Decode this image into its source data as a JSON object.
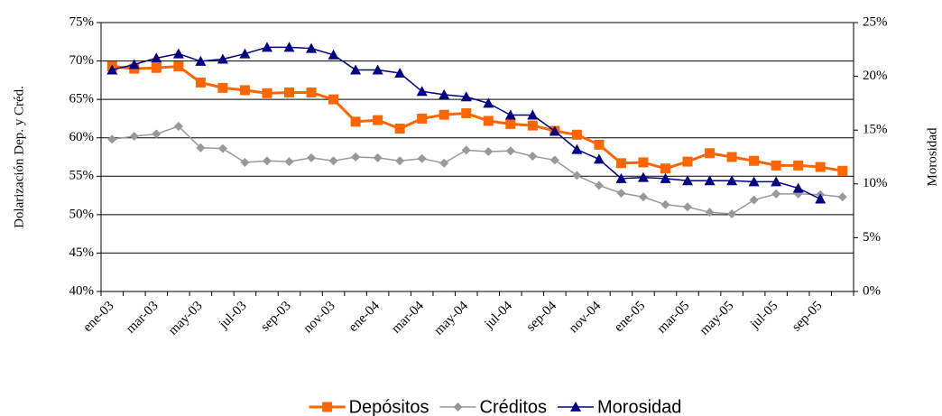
{
  "chart_data": {
    "type": "line",
    "y_label": "Dolarización Dep. y Créd.",
    "y2_label": "Morosidad",
    "categories": [
      "ene-03",
      null,
      "mar-03",
      null,
      "may-03",
      null,
      "jul-03",
      null,
      "sep-03",
      null,
      "nov-03",
      null,
      "ene-04",
      null,
      "mar-04",
      null,
      "may-04",
      null,
      "jul-04",
      null,
      "sep-04",
      null,
      "nov-04",
      null,
      "ene-05",
      null,
      "mar-05",
      null,
      "may-05",
      null,
      "jul-05",
      null,
      "sep-05",
      null
    ],
    "series": [
      {
        "name": "Depósitos",
        "color": "#ff6600",
        "marker": "square",
        "axis": "y",
        "values": [
          69.3,
          69.0,
          69.1,
          69.3,
          67.2,
          66.5,
          66.2,
          65.8,
          65.9,
          65.9,
          65.0,
          62.1,
          62.3,
          61.2,
          62.5,
          63.0,
          63.2,
          62.2,
          61.8,
          61.6,
          60.9,
          60.4,
          59.1,
          56.7,
          56.8,
          56.0,
          56.9,
          58.0,
          57.5,
          57.0,
          56.4,
          56.4,
          56.2,
          55.7
        ]
      },
      {
        "name": "Créditos",
        "color": "#999999",
        "marker": "diamond",
        "axis": "y",
        "values": [
          59.8,
          60.2,
          60.5,
          61.5,
          58.7,
          58.6,
          56.8,
          57.0,
          56.9,
          57.4,
          57.0,
          57.5,
          57.4,
          57.0,
          57.3,
          56.7,
          58.4,
          58.2,
          58.3,
          57.6,
          57.1,
          55.1,
          53.8,
          52.8,
          52.3,
          51.3,
          51.0,
          50.3,
          50.1,
          51.9,
          52.7,
          52.7,
          52.6,
          52.3
        ]
      },
      {
        "name": "Morosidad",
        "color": "#000080",
        "marker": "triangle",
        "axis": "y2",
        "values": [
          20.6,
          21.1,
          21.7,
          22.1,
          21.4,
          21.6,
          22.1,
          22.7,
          22.7,
          22.6,
          22.0,
          20.6,
          20.6,
          20.3,
          18.6,
          18.3,
          18.1,
          17.5,
          16.4,
          16.4,
          14.9,
          13.2,
          12.3,
          10.5,
          10.6,
          10.5,
          10.3,
          10.3,
          10.3,
          10.2,
          10.2,
          9.6,
          8.6,
          null
        ]
      }
    ],
    "ylim": [
      40,
      75
    ],
    "yticks": [
      {
        "value": 40,
        "label": "40%"
      },
      {
        "value": 45,
        "label": "45%"
      },
      {
        "value": 50,
        "label": "50%"
      },
      {
        "value": 55,
        "label": "55%"
      },
      {
        "value": 60,
        "label": "60%"
      },
      {
        "value": 65,
        "label": "65%"
      },
      {
        "value": 70,
        "label": "70%"
      },
      {
        "value": 75,
        "label": "75%"
      }
    ],
    "y2lim": [
      0,
      25
    ],
    "y2ticks": [
      {
        "value": 0,
        "label": "0%"
      },
      {
        "value": 5,
        "label": "5%"
      },
      {
        "value": 10,
        "label": "10%"
      },
      {
        "value": 15,
        "label": "15%"
      },
      {
        "value": 20,
        "label": "20%"
      },
      {
        "value": 25,
        "label": "25%"
      }
    ],
    "grid": true,
    "legend": "bottom"
  }
}
